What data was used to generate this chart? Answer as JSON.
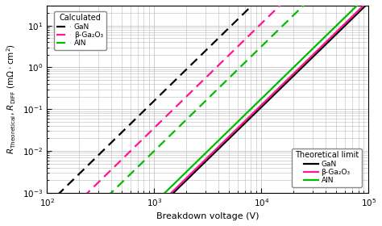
{
  "xlabel": "Breakdown voltage (V)",
  "ylabel_line1": "R",
  "xlim": [
    100.0,
    100000.0
  ],
  "ylim": [
    0.001,
    30
  ],
  "background_color": "#ffffff",
  "grid_color": "#bbbbbb",
  "colors": {
    "GaN": "#000000",
    "beta_Ga2O3": "#ff1493",
    "AlN": "#00bb00"
  },
  "n": 2.5,
  "theoretical_C": {
    "GaN": -10.95,
    "beta_Ga2O3": -10.9,
    "AlN": -10.75
  },
  "calculated_C": {
    "GaN": -8.3,
    "beta_Ga2O3": -8.95,
    "AlN": -9.5
  },
  "legend1_title": "Calculated",
  "legend2_title": "Theoretical limit",
  "legend_items": [
    "GaN",
    "beta_Ga2O3",
    "AlN"
  ],
  "legend_labels": [
    "GaN",
    "β-Ga₂O₃",
    "AlN"
  ],
  "fontsize": 8,
  "lw": 1.6
}
